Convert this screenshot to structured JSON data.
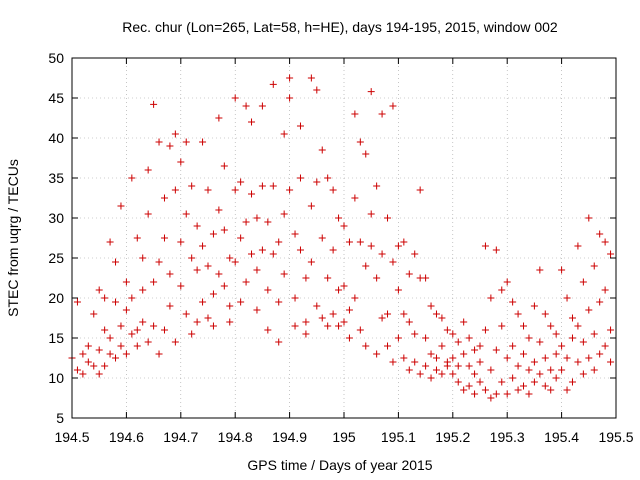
{
  "chart_data": {
    "type": "scatter",
    "title": "Rec. chur (Lon=265, Lat=58, h=HE), days 194-195, 2015, window 002",
    "xlabel": "GPS time / Days of year 2015",
    "ylabel": "STEC from uqrg / TECUs",
    "xlim": [
      194.5,
      195.5
    ],
    "ylim": [
      5,
      50
    ],
    "xticks": [
      "194.5",
      "194.6",
      "194.7",
      "194.8",
      "194.9",
      "195",
      "195.1",
      "195.2",
      "195.3",
      "195.4",
      "195.5"
    ],
    "yticks": [
      "5",
      "10",
      "15",
      "20",
      "25",
      "30",
      "35",
      "40",
      "45",
      "50"
    ],
    "grid": true,
    "marker": "plus",
    "color": "#cc0000",
    "points": [
      [
        194.5,
        12.5
      ],
      [
        194.51,
        11.0
      ],
      [
        194.51,
        19.5
      ],
      [
        194.52,
        13.0
      ],
      [
        194.52,
        10.5
      ],
      [
        194.53,
        14.0
      ],
      [
        194.53,
        12.0
      ],
      [
        194.54,
        18.0
      ],
      [
        194.54,
        11.5
      ],
      [
        194.55,
        21.0
      ],
      [
        194.55,
        13.5
      ],
      [
        194.55,
        10.5
      ],
      [
        194.56,
        20.0
      ],
      [
        194.56,
        11.5
      ],
      [
        194.56,
        16.0
      ],
      [
        194.57,
        27.0
      ],
      [
        194.57,
        15.0
      ],
      [
        194.57,
        13.0
      ],
      [
        194.58,
        19.5
      ],
      [
        194.58,
        12.5
      ],
      [
        194.58,
        24.5
      ],
      [
        194.59,
        31.5
      ],
      [
        194.59,
        16.5
      ],
      [
        194.59,
        14.0
      ],
      [
        194.6,
        22.0
      ],
      [
        194.6,
        18.5
      ],
      [
        194.6,
        13.0
      ],
      [
        194.61,
        35.0
      ],
      [
        194.61,
        20.0
      ],
      [
        194.61,
        15.5
      ],
      [
        194.62,
        27.5
      ],
      [
        194.62,
        16.0
      ],
      [
        194.62,
        14.0
      ],
      [
        194.63,
        25.0
      ],
      [
        194.63,
        21.0
      ],
      [
        194.63,
        17.0
      ],
      [
        194.64,
        36.0
      ],
      [
        194.64,
        30.5
      ],
      [
        194.64,
        14.5
      ],
      [
        194.65,
        44.2
      ],
      [
        194.65,
        22.0
      ],
      [
        194.65,
        16.5
      ],
      [
        194.66,
        39.5
      ],
      [
        194.66,
        24.5
      ],
      [
        194.66,
        13.0
      ],
      [
        194.67,
        32.5
      ],
      [
        194.67,
        27.5
      ],
      [
        194.67,
        16.0
      ],
      [
        194.68,
        39.0
      ],
      [
        194.68,
        23.0
      ],
      [
        194.68,
        19.0
      ],
      [
        194.69,
        40.5
      ],
      [
        194.69,
        33.5
      ],
      [
        194.69,
        14.5
      ],
      [
        194.7,
        37.0
      ],
      [
        194.7,
        27.0
      ],
      [
        194.7,
        21.5
      ],
      [
        194.71,
        39.5
      ],
      [
        194.71,
        30.5
      ],
      [
        194.71,
        18.0
      ],
      [
        194.72,
        34.0
      ],
      [
        194.72,
        25.0
      ],
      [
        194.72,
        15.5
      ],
      [
        194.73,
        29.0
      ],
      [
        194.73,
        23.5
      ],
      [
        194.73,
        17.0
      ],
      [
        194.74,
        39.5
      ],
      [
        194.74,
        26.5
      ],
      [
        194.74,
        19.5
      ],
      [
        194.75,
        33.5
      ],
      [
        194.75,
        24.0
      ],
      [
        194.75,
        17.5
      ],
      [
        194.76,
        28.0
      ],
      [
        194.76,
        20.5
      ],
      [
        194.76,
        16.5
      ],
      [
        194.77,
        42.5
      ],
      [
        194.77,
        31.0
      ],
      [
        194.77,
        23.0
      ],
      [
        194.78,
        36.5
      ],
      [
        194.78,
        28.5
      ],
      [
        194.78,
        21.5
      ],
      [
        194.79,
        25.0
      ],
      [
        194.79,
        19.0
      ],
      [
        194.79,
        17.0
      ],
      [
        194.8,
        45.0
      ],
      [
        194.8,
        33.5
      ],
      [
        194.8,
        24.5
      ],
      [
        194.81,
        34.5
      ],
      [
        194.81,
        27.5
      ],
      [
        194.81,
        19.5
      ],
      [
        194.82,
        44.0
      ],
      [
        194.82,
        29.5
      ],
      [
        194.82,
        22.0
      ],
      [
        194.83,
        42.0
      ],
      [
        194.83,
        33.0
      ],
      [
        194.83,
        25.5
      ],
      [
        194.84,
        30.0
      ],
      [
        194.84,
        23.5
      ],
      [
        194.84,
        18.5
      ],
      [
        194.85,
        44.0
      ],
      [
        194.85,
        34.0
      ],
      [
        194.85,
        26.0
      ],
      [
        194.86,
        29.5
      ],
      [
        194.86,
        21.0
      ],
      [
        194.86,
        16.0
      ],
      [
        194.87,
        46.7
      ],
      [
        194.87,
        34.0
      ],
      [
        194.87,
        25.5
      ],
      [
        194.88,
        27.0
      ],
      [
        194.88,
        19.5
      ],
      [
        194.88,
        14.5
      ],
      [
        194.89,
        40.5
      ],
      [
        194.89,
        30.5
      ],
      [
        194.89,
        23.0
      ],
      [
        194.9,
        47.5
      ],
      [
        194.9,
        45.0
      ],
      [
        194.9,
        33.5
      ],
      [
        194.91,
        28.0
      ],
      [
        194.91,
        20.0
      ],
      [
        194.91,
        16.5
      ],
      [
        194.92,
        41.5
      ],
      [
        194.92,
        35.0
      ],
      [
        194.92,
        26.0
      ],
      [
        194.93,
        22.5
      ],
      [
        194.93,
        17.0
      ],
      [
        194.93,
        15.5
      ],
      [
        194.94,
        47.5
      ],
      [
        194.94,
        31.5
      ],
      [
        194.94,
        24.5
      ],
      [
        194.95,
        46.0
      ],
      [
        194.95,
        34.5
      ],
      [
        194.95,
        19.0
      ],
      [
        194.96,
        38.5
      ],
      [
        194.96,
        27.5
      ],
      [
        194.96,
        17.5
      ],
      [
        194.97,
        35.0
      ],
      [
        194.97,
        22.5
      ],
      [
        194.97,
        16.5
      ],
      [
        194.98,
        33.5
      ],
      [
        194.98,
        26.0
      ],
      [
        194.98,
        18.0
      ],
      [
        194.99,
        30.0
      ],
      [
        194.99,
        21.0
      ],
      [
        194.99,
        16.5
      ],
      [
        195.0,
        29.0
      ],
      [
        195.0,
        21.5
      ],
      [
        195.0,
        17.0
      ],
      [
        195.01,
        27.0
      ],
      [
        195.01,
        18.5
      ],
      [
        195.01,
        15.0
      ],
      [
        195.02,
        43.0
      ],
      [
        195.02,
        32.5
      ],
      [
        195.02,
        20.0
      ],
      [
        195.03,
        39.5
      ],
      [
        195.03,
        27.0
      ],
      [
        195.03,
        16.0
      ],
      [
        195.04,
        38.0
      ],
      [
        195.04,
        24.0
      ],
      [
        195.04,
        14.0
      ],
      [
        195.05,
        45.8
      ],
      [
        195.05,
        30.5
      ],
      [
        195.05,
        26.5
      ],
      [
        195.06,
        34.0
      ],
      [
        195.06,
        22.5
      ],
      [
        195.06,
        13.0
      ],
      [
        195.07,
        43.0
      ],
      [
        195.07,
        25.5
      ],
      [
        195.07,
        17.5
      ],
      [
        195.08,
        30.0
      ],
      [
        195.08,
        18.0
      ],
      [
        195.08,
        14.0
      ],
      [
        195.09,
        44.0
      ],
      [
        195.09,
        24.5
      ],
      [
        195.09,
        12.0
      ],
      [
        195.1,
        26.5
      ],
      [
        195.1,
        21.0
      ],
      [
        195.1,
        15.0
      ],
      [
        195.11,
        27.0
      ],
      [
        195.11,
        18.0
      ],
      [
        195.11,
        12.5
      ],
      [
        195.12,
        23.0
      ],
      [
        195.12,
        17.0
      ],
      [
        195.12,
        11.0
      ],
      [
        195.13,
        25.5
      ],
      [
        195.13,
        15.5
      ],
      [
        195.13,
        12.0
      ],
      [
        195.14,
        33.5
      ],
      [
        195.14,
        22.5
      ],
      [
        195.14,
        10.5
      ],
      [
        195.15,
        22.5
      ],
      [
        195.15,
        15.0
      ],
      [
        195.15,
        11.5
      ],
      [
        195.16,
        19.0
      ],
      [
        195.16,
        13.0
      ],
      [
        195.16,
        10.0
      ],
      [
        195.17,
        18.0
      ],
      [
        195.17,
        12.5
      ],
      [
        195.17,
        11.0
      ],
      [
        195.18,
        17.5
      ],
      [
        195.18,
        14.0
      ],
      [
        195.18,
        10.5
      ],
      [
        195.19,
        16.0
      ],
      [
        195.19,
        12.0
      ],
      [
        195.19,
        11.5
      ],
      [
        195.2,
        15.5
      ],
      [
        195.2,
        10.5
      ],
      [
        195.2,
        12.5
      ],
      [
        195.21,
        14.5
      ],
      [
        195.21,
        9.5
      ],
      [
        195.21,
        11.5
      ],
      [
        195.22,
        17.0
      ],
      [
        195.22,
        13.0
      ],
      [
        195.22,
        8.5
      ],
      [
        195.23,
        15.0
      ],
      [
        195.23,
        11.5
      ],
      [
        195.23,
        9.0
      ],
      [
        195.24,
        13.5
      ],
      [
        195.24,
        10.5
      ],
      [
        195.24,
        8.0
      ],
      [
        195.25,
        14.0
      ],
      [
        195.25,
        9.5
      ],
      [
        195.25,
        12.0
      ],
      [
        195.26,
        26.5
      ],
      [
        195.26,
        16.0
      ],
      [
        195.26,
        8.5
      ],
      [
        195.27,
        20.0
      ],
      [
        195.27,
        11.0
      ],
      [
        195.27,
        7.5
      ],
      [
        195.28,
        26.0
      ],
      [
        195.28,
        13.5
      ],
      [
        195.28,
        8.0
      ],
      [
        195.29,
        21.0
      ],
      [
        195.29,
        16.5
      ],
      [
        195.29,
        9.5
      ],
      [
        195.3,
        22.0
      ],
      [
        195.3,
        12.5
      ],
      [
        195.3,
        8.0
      ],
      [
        195.31,
        19.5
      ],
      [
        195.31,
        14.0
      ],
      [
        195.31,
        10.0
      ],
      [
        195.32,
        18.0
      ],
      [
        195.32,
        11.5
      ],
      [
        195.32,
        8.5
      ],
      [
        195.33,
        16.5
      ],
      [
        195.33,
        13.0
      ],
      [
        195.33,
        9.0
      ],
      [
        195.34,
        15.0
      ],
      [
        195.34,
        11.0
      ],
      [
        195.34,
        8.0
      ],
      [
        195.35,
        19.0
      ],
      [
        195.35,
        12.0
      ],
      [
        195.35,
        9.5
      ],
      [
        195.36,
        23.5
      ],
      [
        195.36,
        14.5
      ],
      [
        195.36,
        10.5
      ],
      [
        195.37,
        18.0
      ],
      [
        195.37,
        12.5
      ],
      [
        195.37,
        9.0
      ],
      [
        195.38,
        16.5
      ],
      [
        195.38,
        11.0
      ],
      [
        195.38,
        8.5
      ],
      [
        195.39,
        15.5
      ],
      [
        195.39,
        13.0
      ],
      [
        195.39,
        10.0
      ],
      [
        195.4,
        23.5
      ],
      [
        195.4,
        14.0
      ],
      [
        195.4,
        11.0
      ],
      [
        195.41,
        20.0
      ],
      [
        195.41,
        12.5
      ],
      [
        195.41,
        8.5
      ],
      [
        195.42,
        17.5
      ],
      [
        195.42,
        15.0
      ],
      [
        195.42,
        9.5
      ],
      [
        195.43,
        26.5
      ],
      [
        195.43,
        16.5
      ],
      [
        195.43,
        12.0
      ],
      [
        195.44,
        22.0
      ],
      [
        195.44,
        14.5
      ],
      [
        195.44,
        10.5
      ],
      [
        195.45,
        30.0
      ],
      [
        195.45,
        18.5
      ],
      [
        195.45,
        12.5
      ],
      [
        195.46,
        24.0
      ],
      [
        195.46,
        15.5
      ],
      [
        195.46,
        11.0
      ],
      [
        195.47,
        28.0
      ],
      [
        195.47,
        19.5
      ],
      [
        195.47,
        13.0
      ],
      [
        195.48,
        27.0
      ],
      [
        195.48,
        21.0
      ],
      [
        195.48,
        14.0
      ],
      [
        195.49,
        25.5
      ],
      [
        195.49,
        16.0
      ],
      [
        195.49,
        12.0
      ]
    ]
  }
}
